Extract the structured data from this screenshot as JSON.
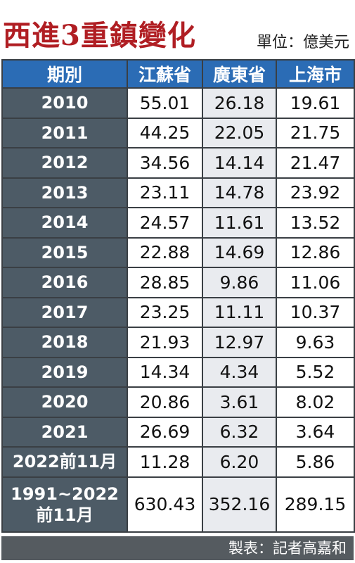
{
  "header": {
    "title": "西進3重鎮變化",
    "unit": "單位：億美元"
  },
  "table": {
    "columns": [
      "期別",
      "江蘇省",
      "廣東省",
      "上海市"
    ],
    "rows": [
      [
        "2010",
        "55.01",
        "26.18",
        "19.61"
      ],
      [
        "2011",
        "44.25",
        "22.05",
        "21.75"
      ],
      [
        "2012",
        "34.56",
        "14.14",
        "21.47"
      ],
      [
        "2013",
        "23.11",
        "14.78",
        "23.92"
      ],
      [
        "2014",
        "24.57",
        "11.61",
        "13.52"
      ],
      [
        "2015",
        "22.88",
        "14.69",
        "12.86"
      ],
      [
        "2016",
        "28.85",
        "9.86",
        "11.06"
      ],
      [
        "2017",
        "23.25",
        "11.11",
        "10.37"
      ],
      [
        "2018",
        "21.93",
        "12.97",
        "9.63"
      ],
      [
        "2019",
        "14.34",
        "4.34",
        "5.52"
      ],
      [
        "2020",
        "20.86",
        "3.61",
        "8.02"
      ],
      [
        "2021",
        "26.69",
        "6.32",
        "3.64"
      ],
      [
        "2022前11月",
        "11.28",
        "6.20",
        "5.86"
      ],
      [
        "1991~2022\n前11月",
        "630.43",
        "352.16",
        "289.15"
      ]
    ]
  },
  "footer": "製表：記者高嘉和"
}
